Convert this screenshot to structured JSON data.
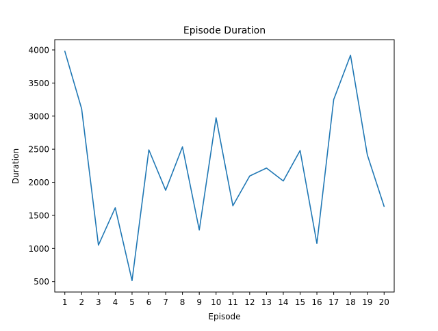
{
  "chart_data": {
    "type": "line",
    "title": "Episode Duration",
    "xlabel": "Episode",
    "ylabel": "Duration",
    "x": [
      1,
      2,
      3,
      4,
      5,
      6,
      7,
      8,
      9,
      10,
      11,
      12,
      13,
      14,
      15,
      16,
      17,
      18,
      19,
      20
    ],
    "series": [
      {
        "values": [
          3980,
          3110,
          1050,
          1615,
          515,
          2490,
          1880,
          2535,
          1280,
          2975,
          1645,
          2095,
          2215,
          2020,
          2480,
          1075,
          3250,
          3920,
          2415,
          1635
        ]
      }
    ],
    "xlim": [
      0.4,
      20.6
    ],
    "ylim": [
      342,
      4155
    ],
    "xticks": [
      1,
      2,
      3,
      4,
      5,
      6,
      7,
      8,
      9,
      10,
      11,
      12,
      13,
      14,
      15,
      16,
      17,
      18,
      19,
      20
    ],
    "yticks": [
      500,
      1000,
      1500,
      2000,
      2500,
      3000,
      3500,
      4000
    ],
    "line_color": "#1f77b4",
    "grid": false,
    "legend": "none"
  }
}
